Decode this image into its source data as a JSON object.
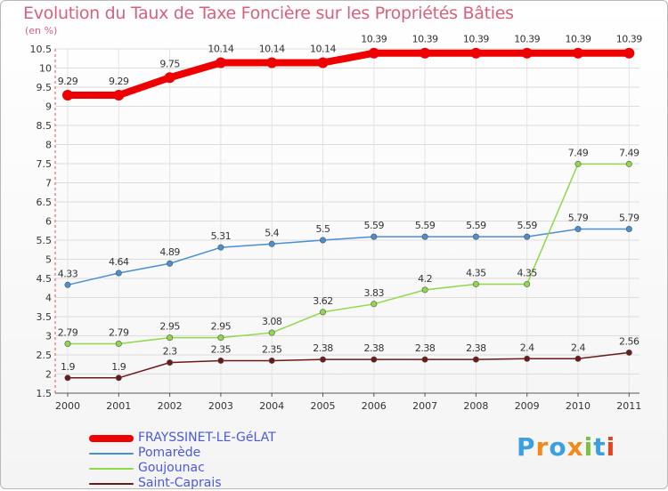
{
  "chart_data": {
    "type": "line",
    "title": "Evolution du Taux de Taxe Foncière sur les Propriétés Bâties",
    "unit_label": "(en %)",
    "ylim": [
      1.5,
      10.5
    ],
    "y_ticks": [
      "1.5",
      "2",
      "2.5",
      "3",
      "3.5",
      "4",
      "4.5",
      "5",
      "5.5",
      "6",
      "6.5",
      "7",
      "7.5",
      "8",
      "8.5",
      "9",
      "9.5",
      "10",
      "10.5"
    ],
    "x": [
      "2000",
      "2001",
      "2002",
      "2003",
      "2004",
      "2005",
      "2006",
      "2007",
      "2008",
      "2009",
      "2010",
      "2011"
    ],
    "series": [
      {
        "name": "FRAYSSINET-LE-GéLAT",
        "color": "#ee0000",
        "values": [
          9.29,
          9.29,
          9.75,
          10.14,
          10.14,
          10.14,
          10.39,
          10.39,
          10.39,
          10.39,
          10.39,
          10.39
        ],
        "labels": [
          "9.29",
          "9.29",
          "9.75",
          "10.14",
          "10.14",
          "10.14",
          "10.39",
          "10.39",
          "10.39",
          "10.39",
          "10.39",
          "10.39"
        ]
      },
      {
        "name": "Pomarède",
        "color": "#4a8fd0",
        "values": [
          4.33,
          4.64,
          4.89,
          5.31,
          5.4,
          5.5,
          5.59,
          5.59,
          5.59,
          5.59,
          5.79,
          5.79
        ],
        "labels": [
          "4.33",
          "4.64",
          "4.89",
          "5.31",
          "5.4",
          "5.5",
          "5.59",
          "5.59",
          "5.59",
          "5.59",
          "5.79",
          "5.79"
        ]
      },
      {
        "name": "Goujounac",
        "color": "#8fd84a",
        "values": [
          2.79,
          2.79,
          2.95,
          2.95,
          3.08,
          3.62,
          3.83,
          4.2,
          4.35,
          4.35,
          7.49,
          7.49
        ],
        "labels": [
          "2.79",
          "2.79",
          "2.95",
          "2.95",
          "3.08",
          "3.62",
          "3.83",
          "4.2",
          "4.35",
          "4.35",
          "7.49",
          "7.49"
        ]
      },
      {
        "name": "Saint-Caprais",
        "color": "#6b1a1a",
        "values": [
          1.9,
          1.9,
          2.3,
          2.35,
          2.35,
          2.38,
          2.38,
          2.38,
          2.38,
          2.4,
          2.4,
          2.56
        ],
        "labels": [
          "1.9",
          "1.9",
          "2.3",
          "2.35",
          "2.35",
          "2.38",
          "2.38",
          "2.38",
          "2.38",
          "2.4",
          "2.4",
          "2.56"
        ]
      }
    ]
  },
  "logo": {
    "text": "Proxiti",
    "letters": [
      "P",
      "r",
      "o",
      "x",
      "i",
      "t",
      "i"
    ],
    "colors": [
      "#3aa0e0",
      "#f08a1c",
      "#3aa0e0",
      "#f08a1c",
      "#7ac143",
      "#3aa0e0",
      "#e8421c"
    ]
  }
}
